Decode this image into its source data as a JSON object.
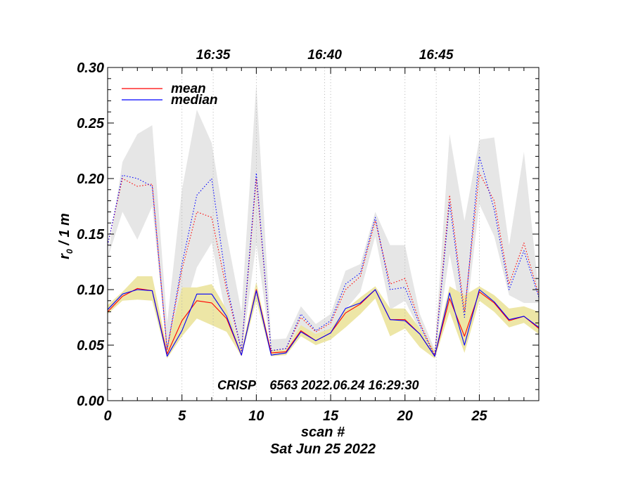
{
  "chart_data": {
    "type": "line",
    "title": "",
    "xlabel": "scan #",
    "date_label": "Sat Jun 25 2022",
    "ylabel_main": "r",
    "ylabel_sub": "0",
    "ylabel_rest": " / 1 m",
    "annotation": "CRISP    6563 2022.06.24 16:29:30",
    "xlim": [
      0,
      29
    ],
    "ylim": [
      0,
      0.3
    ],
    "x_ticks": [
      0,
      5,
      10,
      15,
      20,
      25
    ],
    "x_tick_labels": [
      "0",
      "5",
      "10",
      "15",
      "20",
      "25"
    ],
    "y_ticks": [
      0,
      0.05,
      0.1,
      0.15,
      0.2,
      0.25,
      0.3
    ],
    "y_tick_labels": [
      "0.00",
      "0.05",
      "0.10",
      "0.15",
      "0.20",
      "0.25",
      "0.30"
    ],
    "top_time_ticks": [
      {
        "scan": 7.1,
        "label": "16:35"
      },
      {
        "scan": 14.6,
        "label": "16:40"
      },
      {
        "scan": 22.1,
        "label": "16:45"
      }
    ],
    "legend": [
      {
        "name": "mean",
        "color": "#ff0000"
      },
      {
        "name": "median",
        "color": "#0000ff"
      }
    ],
    "x": [
      0,
      1,
      2,
      3,
      4,
      5,
      6,
      7,
      8,
      9,
      10,
      11,
      12,
      13,
      14,
      15,
      16,
      17,
      18,
      19,
      20,
      21,
      22,
      23,
      24,
      25,
      26,
      27,
      28,
      29
    ],
    "series": [
      {
        "name": "mean",
        "kind": "solid",
        "color": "#ff0000",
        "values": [
          0.08,
          0.094,
          0.101,
          0.099,
          0.042,
          0.072,
          0.09,
          0.088,
          0.074,
          0.041,
          0.1,
          0.043,
          0.044,
          0.063,
          0.054,
          0.061,
          0.079,
          0.087,
          0.1,
          0.073,
          0.073,
          0.06,
          0.04,
          0.092,
          0.058,
          0.098,
          0.088,
          0.072,
          0.076,
          0.065
        ]
      },
      {
        "name": "median",
        "kind": "solid",
        "color": "#0000ff",
        "values": [
          0.082,
          0.096,
          0.1,
          0.099,
          0.04,
          0.063,
          0.096,
          0.096,
          0.076,
          0.041,
          0.099,
          0.041,
          0.043,
          0.062,
          0.054,
          0.061,
          0.083,
          0.088,
          0.1,
          0.073,
          0.072,
          0.06,
          0.04,
          0.097,
          0.05,
          0.1,
          0.089,
          0.073,
          0.076,
          0.066
        ]
      },
      {
        "name": "mean (upper)",
        "kind": "dotted",
        "color": "#ff0000",
        "values": [
          0.14,
          0.2,
          0.193,
          0.195,
          0.046,
          0.118,
          0.17,
          0.165,
          0.1,
          0.045,
          0.2,
          0.045,
          0.047,
          0.075,
          0.062,
          0.07,
          0.1,
          0.112,
          0.162,
          0.105,
          0.11,
          0.07,
          0.041,
          0.185,
          0.08,
          0.205,
          0.18,
          0.105,
          0.142,
          0.095
        ]
      },
      {
        "name": "median (upper)",
        "kind": "dotted",
        "color": "#0000ff",
        "values": [
          0.14,
          0.203,
          0.2,
          0.193,
          0.046,
          0.123,
          0.185,
          0.2,
          0.105,
          0.045,
          0.205,
          0.045,
          0.047,
          0.078,
          0.063,
          0.072,
          0.105,
          0.115,
          0.165,
          0.1,
          0.102,
          0.068,
          0.04,
          0.178,
          0.075,
          0.22,
          0.172,
          0.1,
          0.135,
          0.093
        ]
      }
    ],
    "bands": [
      {
        "name": "upper spread",
        "color": "#e6e6e6",
        "upper": [
          0.128,
          0.215,
          0.24,
          0.248,
          0.07,
          0.19,
          0.262,
          0.232,
          0.15,
          0.08,
          0.285,
          0.055,
          0.056,
          0.085,
          0.069,
          0.078,
          0.117,
          0.123,
          0.17,
          0.14,
          0.14,
          0.078,
          0.046,
          0.24,
          0.162,
          0.235,
          0.237,
          0.14,
          0.224,
          0.098
        ],
        "lower": [
          0.128,
          0.17,
          0.145,
          0.175,
          0.044,
          0.074,
          0.12,
          0.142,
          0.074,
          0.041,
          0.142,
          0.044,
          0.045,
          0.062,
          0.057,
          0.063,
          0.082,
          0.098,
          0.148,
          0.082,
          0.09,
          0.063,
          0.04,
          0.132,
          0.062,
          0.177,
          0.148,
          0.095,
          0.088,
          0.088
        ]
      },
      {
        "name": "lower spread",
        "color": "#ede6a6",
        "upper": [
          0.086,
          0.098,
          0.112,
          0.112,
          0.048,
          0.102,
          0.102,
          0.105,
          0.082,
          0.045,
          0.107,
          0.045,
          0.046,
          0.068,
          0.06,
          0.065,
          0.082,
          0.093,
          0.103,
          0.083,
          0.083,
          0.065,
          0.045,
          0.103,
          0.095,
          0.103,
          0.095,
          0.083,
          0.085,
          0.08
        ]
      },
      {
        "name": "lower spread",
        "color": "#ede6a6",
        "lower": [
          0.078,
          0.09,
          0.091,
          0.09,
          0.038,
          0.058,
          0.074,
          0.068,
          0.062,
          0.04,
          0.09,
          0.04,
          0.041,
          0.058,
          0.05,
          0.055,
          0.066,
          0.078,
          0.092,
          0.058,
          0.065,
          0.048,
          0.038,
          0.08,
          0.043,
          0.09,
          0.08,
          0.066,
          0.07,
          0.06
        ]
      }
    ]
  }
}
